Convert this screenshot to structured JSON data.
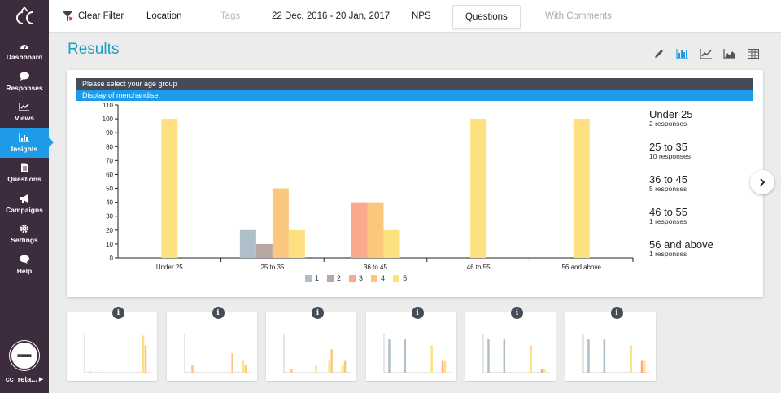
{
  "sidebar": {
    "items": [
      {
        "label": "Dashboard",
        "icon": "dashboard-icon"
      },
      {
        "label": "Responses",
        "icon": "chat-icon"
      },
      {
        "label": "Views",
        "icon": "line-chart-icon"
      },
      {
        "label": "Insights",
        "icon": "bar-chart-icon",
        "active": true
      },
      {
        "label": "Questions",
        "icon": "document-icon"
      },
      {
        "label": "Campaigns",
        "icon": "megaphone-icon"
      },
      {
        "label": "Settings",
        "icon": "gear-icon"
      },
      {
        "label": "Help",
        "icon": "help-chat-icon"
      }
    ],
    "account_name": "cc_reta...",
    "logo": "cc"
  },
  "topbar": {
    "clear_filter": "Clear Filter",
    "location": "Location",
    "tags": "Tags",
    "date_range": "22 Dec, 2016 - 20 Jan, 2017",
    "nps": "NPS",
    "questions": "Questions",
    "with_comments": "With Comments"
  },
  "page_title": "Results",
  "chart_tools": [
    "edit-icon",
    "bar-chart-icon",
    "line-chart-icon",
    "area-chart-icon",
    "table-icon"
  ],
  "accent": "#1e9be8",
  "question_primary": "Please select your age group",
  "question_secondary": "Display of merchandise",
  "chart_data": {
    "type": "bar",
    "categories": [
      "Under 25",
      "25 to 35",
      "36 to 45",
      "46 to 55",
      "56 and above"
    ],
    "series": [
      {
        "name": "1",
        "color": "#aebfc9",
        "values": [
          0,
          20,
          0,
          0,
          0
        ]
      },
      {
        "name": "2",
        "color": "#b9a8a1",
        "values": [
          0,
          10,
          0,
          0,
          0
        ]
      },
      {
        "name": "3",
        "color": "#f9a98d",
        "values": [
          0,
          0,
          40,
          0,
          0
        ]
      },
      {
        "name": "4",
        "color": "#fbc77d",
        "values": [
          0,
          50,
          40,
          0,
          0
        ]
      },
      {
        "name": "5",
        "color": "#fde080",
        "values": [
          100,
          20,
          20,
          100,
          100
        ]
      }
    ],
    "ylim": [
      0,
      110
    ],
    "yticks": [
      "0",
      "10",
      "20",
      "30",
      "40",
      "50",
      "60",
      "70",
      "80",
      "90",
      "100",
      "110"
    ],
    "grid": false,
    "legend_placement": "bottom"
  },
  "groups": [
    {
      "title": "Under 25",
      "sub": "2 responses"
    },
    {
      "title": "25 to 35",
      "sub": "10 responses"
    },
    {
      "title": "36 to 45",
      "sub": "5 responses"
    },
    {
      "title": "46 to 55",
      "sub": "1 responses"
    },
    {
      "title": "56 and above",
      "sub": "1 responses"
    }
  ],
  "thumbnails": [
    {
      "info": "i",
      "bars": [
        [
          0.05,
          0
        ],
        [
          0.02,
          0
        ],
        [
          0,
          0
        ],
        [
          0,
          0
        ],
        [
          0.95,
          0.7
        ]
      ]
    },
    {
      "info": "i",
      "bars": [
        [
          0,
          0.2
        ],
        [
          0,
          0
        ],
        [
          0,
          0
        ],
        [
          0,
          0.5
        ],
        [
          0.3,
          0.2
        ]
      ]
    },
    {
      "info": "i",
      "bars": [
        [
          0,
          0.1
        ],
        [
          0,
          0
        ],
        [
          0.2,
          0
        ],
        [
          0.3,
          0.6
        ],
        [
          0.2,
          0.3
        ]
      ]
    },
    {
      "info": "i",
      "bars": [
        [
          0.85,
          0
        ],
        [
          0,
          0.85
        ],
        [
          0,
          0
        ],
        [
          0,
          0.7
        ],
        [
          0.3,
          0.3
        ]
      ]
    },
    {
      "info": "i",
      "bars": [
        [
          0.85,
          0
        ],
        [
          0,
          0.85
        ],
        [
          0,
          0
        ],
        [
          0,
          0.7
        ],
        [
          0.1,
          0.1
        ]
      ]
    },
    {
      "info": "i",
      "bars": [
        [
          0.85,
          0
        ],
        [
          0,
          0.85
        ],
        [
          0,
          0
        ],
        [
          0,
          0.7
        ],
        [
          0.3,
          0.3
        ]
      ]
    }
  ]
}
